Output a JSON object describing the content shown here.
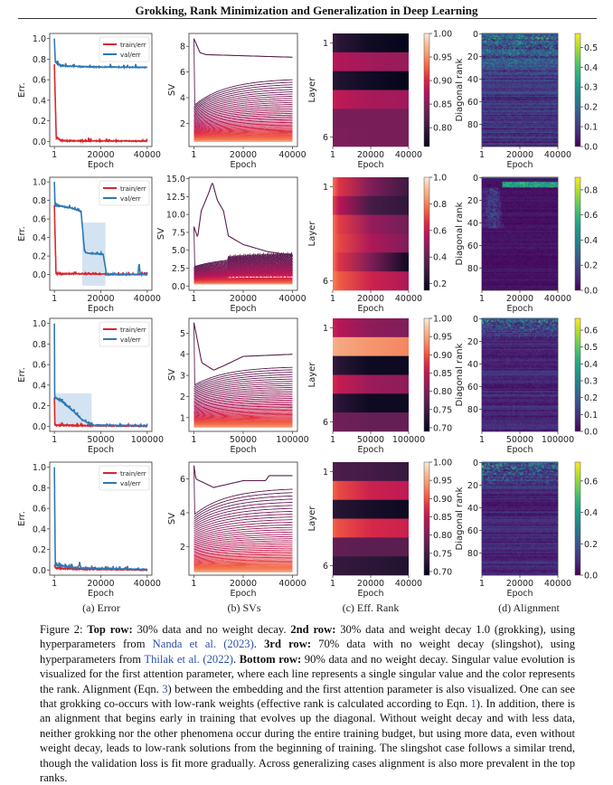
{
  "header": {
    "title": "Grokking, Rank Minimization and Generalization in Deep Learning"
  },
  "subcaptions": [
    "(a) Error",
    "(b) SVs",
    "(c) Eff. Rank",
    "(d) Alignment"
  ],
  "caption": {
    "segments": [
      {
        "text": "Figure 2: ",
        "style": "normal"
      },
      {
        "text": "Top row:",
        "style": "bold"
      },
      {
        "text": " 30% data and no weight decay.  ",
        "style": "normal"
      },
      {
        "text": "2nd row:",
        "style": "bold"
      },
      {
        "text": " 30% data and weight decay 1.0 (grokking), using hyperparameters from ",
        "style": "normal"
      },
      {
        "text": "Nanda et al. (2023)",
        "style": "link"
      },
      {
        "text": ". ",
        "style": "normal"
      },
      {
        "text": "3rd row:",
        "style": "bold"
      },
      {
        "text": " 70% data with no weight decay (slingshot), using hyperparameters from ",
        "style": "normal"
      },
      {
        "text": "Thilak et al. (2022)",
        "style": "link"
      },
      {
        "text": ".  ",
        "style": "normal"
      },
      {
        "text": "Bottom row:",
        "style": "bold"
      },
      {
        "text": " 90% data and no weight decay. Singular value evolution is visualized for the first attention parameter, where each line represents a single singular value and the color represents the rank. Alignment (Eqn. ",
        "style": "normal"
      },
      {
        "text": "3",
        "style": "link"
      },
      {
        "text": ") between the embedding and the first attention parameter is also visualized. One can see that grokking co-occurs with low-rank weights (effective rank is calculated according to Eqn. ",
        "style": "normal"
      },
      {
        "text": "1",
        "style": "link"
      },
      {
        "text": "). In addition, there is an alignment that begins early in training that evolves up the diagonal. Without weight decay and with less data, neither grokking nor the other phenomena occur during the entire training budget, but using more data, even without weight decay, leads to low-rank solutions from the beginning of training. The slingshot case follows a similar trend, though the validation loss is fit more gradually. Across generalizing cases alignment is also more prevalent in the top ranks.",
        "style": "normal"
      }
    ]
  },
  "colors": {
    "train": "#d9262b",
    "val": "#2f78b5",
    "val_band": "#c9dcee",
    "link": "#2b50a8"
  },
  "chart_data": [
    {
      "row": "Top row",
      "xlabel": "Epoch",
      "xlim": [
        1,
        40000
      ],
      "xtick_labels": [
        "1",
        "20000",
        "40000"
      ],
      "error": {
        "type": "line",
        "ylabel": "Err.",
        "ylim": [
          -0.05,
          1.05
        ],
        "ytick_labels": [
          "0.0",
          "0.2",
          "0.4",
          "0.6",
          "0.8",
          "1.0"
        ],
        "legend": [
          "train/err",
          "val/err"
        ],
        "legend_position": "top-right",
        "train": [
          [
            1,
            0.75
          ],
          [
            800,
            0.04
          ],
          [
            3000,
            0.005
          ],
          [
            40000,
            0.003
          ]
        ],
        "val": [
          [
            1,
            1.0
          ],
          [
            400,
            0.77
          ],
          [
            3000,
            0.735
          ],
          [
            15000,
            0.725
          ],
          [
            40000,
            0.72
          ]
        ],
        "val_band": null
      },
      "svs": {
        "type": "line",
        "ylabel": "SV",
        "ylim": [
          0.2,
          9.0
        ],
        "ytick_labels": [
          "2",
          "4",
          "6",
          "8"
        ],
        "top_sv": [
          [
            1,
            8.6
          ],
          [
            2500,
            7.5
          ],
          [
            5000,
            7.35
          ],
          [
            40000,
            7.15
          ]
        ],
        "bulk_start": [
          3.5,
          0.6
        ],
        "bulk_end": [
          5.6,
          0.6
        ],
        "oscillation": 0
      },
      "eff_rank": {
        "type": "heatmap",
        "ylabel": "Layer",
        "ytick_labels": [
          "1",
          "6"
        ],
        "colorbar_range": [
          0.76,
          1.0
        ],
        "colorbar_tick_labels": [
          "0.80",
          "0.85",
          "0.90",
          "0.95",
          "1.00"
        ],
        "layers_start_mid_end": [
          [
            0.8,
            0.77,
            0.76
          ],
          [
            0.88,
            0.865,
            0.86
          ],
          [
            0.79,
            0.77,
            0.76
          ],
          [
            0.89,
            0.87,
            0.865
          ],
          [
            0.84,
            0.84,
            0.84
          ],
          [
            0.845,
            0.84,
            0.84
          ]
        ]
      },
      "alignment": {
        "type": "heatmap",
        "ylabel": "Diagonal rank",
        "ytick_labels": [
          "0",
          "20",
          "40",
          "60",
          "80"
        ],
        "ranks": 100,
        "colorbar_range": [
          0,
          0.57
        ],
        "colorbar_tick_labels": [
          "0.0",
          "0.1",
          "0.2",
          "0.3",
          "0.4",
          "0.5"
        ],
        "background_level": 0.12,
        "top_band_level": 0.3,
        "top_band_ranks": 45,
        "early_band": false
      }
    },
    {
      "row": "2nd row",
      "xlabel": "Epoch",
      "xlim": [
        1,
        40000
      ],
      "xtick_labels": [
        "1",
        "20000",
        "40000"
      ],
      "error": {
        "type": "line",
        "ylabel": "Err.",
        "ylim": [
          -0.17,
          1.05
        ],
        "ytick_labels": [
          "0.0",
          "0.2",
          "0.4",
          "0.6",
          "0.8",
          "1.0"
        ],
        "legend": [
          "train/err",
          "val/err"
        ],
        "legend_position": "top-right",
        "train": [
          [
            1,
            0.75
          ],
          [
            700,
            0.01
          ],
          [
            40000,
            0.0
          ]
        ],
        "val": [
          [
            1,
            1.0
          ],
          [
            300,
            0.75
          ],
          [
            7000,
            0.72
          ],
          [
            11500,
            0.68
          ],
          [
            13000,
            0.25
          ],
          [
            14000,
            0.23
          ],
          [
            21000,
            0.22
          ],
          [
            22500,
            0.0
          ],
          [
            36000,
            0.0
          ],
          [
            36500,
            0.12
          ],
          [
            37000,
            0.0
          ],
          [
            40000,
            0.0
          ]
        ],
        "val_band": {
          "epochs": [
            12000,
            22000
          ],
          "range": [
            -0.12,
            0.56
          ]
        }
      },
      "svs": {
        "type": "line",
        "ylabel": "SV",
        "ylim": [
          -0.6,
          15.2
        ],
        "ytick_labels": [
          "0.0",
          "2.5",
          "5.0",
          "7.5",
          "10.0",
          "12.5",
          "15.0"
        ],
        "top_sv": [
          [
            1,
            8.3
          ],
          [
            1500,
            6.8
          ],
          [
            3000,
            10.5
          ],
          [
            6000,
            13.0
          ],
          [
            7500,
            14.5
          ],
          [
            9500,
            12.0
          ],
          [
            12000,
            10.5
          ],
          [
            14000,
            7.0
          ],
          [
            20000,
            5.8
          ],
          [
            30000,
            4.8
          ],
          [
            40000,
            4.3
          ]
        ],
        "bulk_start": [
          2.8,
          0.3
        ],
        "bulk_end": [
          4.2,
          0.3
        ],
        "oscillation": 0.6
      },
      "eff_rank": {
        "type": "heatmap",
        "ylabel": "Layer",
        "ytick_labels": [
          "1",
          "6"
        ],
        "colorbar_range": [
          0.15,
          1.0
        ],
        "colorbar_tick_labels": [
          "0.2",
          "0.4",
          "0.6",
          "0.8",
          "1.0"
        ],
        "layers_start_mid_end": [
          [
            0.78,
            0.45,
            0.3
          ],
          [
            0.7,
            0.32,
            0.27
          ],
          [
            0.78,
            0.5,
            0.42
          ],
          [
            0.78,
            0.55,
            0.45
          ],
          [
            0.78,
            0.45,
            0.18
          ],
          [
            0.8,
            0.62,
            0.55
          ]
        ]
      },
      "alignment": {
        "type": "heatmap",
        "ylabel": "Diagonal rank",
        "ytick_labels": [
          "0",
          "20",
          "40",
          "60",
          "80"
        ],
        "ranks": 100,
        "colorbar_range": [
          0,
          0.9
        ],
        "colorbar_tick_labels": [
          "0.0",
          "0.2",
          "0.4",
          "0.6",
          "0.8"
        ],
        "background_level": 0.08,
        "top_band_level": 0.6,
        "top_band_ranks": 8,
        "early_band": true
      }
    },
    {
      "row": "3rd row",
      "xlabel": "Epoch",
      "xlim": [
        1,
        100000
      ],
      "xtick_labels": [
        "1",
        "50000",
        "100000"
      ],
      "error": {
        "type": "line",
        "ylabel": "Err.",
        "ylim": [
          -0.05,
          1.05
        ],
        "ytick_labels": [
          "0.0",
          "0.2",
          "0.4",
          "0.6",
          "0.8",
          "1.0"
        ],
        "legend": [
          "train/err",
          "val/err"
        ],
        "legend_position": "top-right",
        "train": [
          [
            1,
            0.28
          ],
          [
            600,
            0.01
          ],
          [
            100000,
            0.0
          ]
        ],
        "val": [
          [
            1,
            1.0
          ],
          [
            400,
            0.28
          ],
          [
            10000,
            0.23
          ],
          [
            20000,
            0.15
          ],
          [
            30000,
            0.06
          ],
          [
            42000,
            0.01
          ],
          [
            100000,
            0.005
          ]
        ],
        "val_band": {
          "epochs": [
            1,
            40000
          ],
          "range": [
            0.0,
            0.32
          ]
        }
      },
      "svs": {
        "type": "line",
        "ylabel": "SV",
        "ylim": [
          0.35,
          5.7
        ],
        "ytick_labels": [
          "1",
          "2",
          "3",
          "4",
          "5"
        ],
        "top_sv": [
          [
            1,
            5.5
          ],
          [
            8000,
            3.6
          ],
          [
            20000,
            3.25
          ],
          [
            30000,
            3.45
          ],
          [
            50000,
            3.9
          ],
          [
            100000,
            4.0
          ]
        ],
        "bulk_start": [
          2.6,
          0.55
        ],
        "bulk_end": [
          3.5,
          0.55
        ],
        "oscillation": 0
      },
      "eff_rank": {
        "type": "heatmap",
        "ylabel": "Layer",
        "ytick_labels": [
          "1",
          "6"
        ],
        "colorbar_range": [
          0.69,
          1.0
        ],
        "colorbar_tick_labels": [
          "0.70",
          "0.75",
          "0.80",
          "0.85",
          "0.90",
          "0.95",
          "1.00"
        ],
        "layers_start_mid_end": [
          [
            0.86,
            0.81,
            0.8
          ],
          [
            0.96,
            0.94,
            0.93
          ],
          [
            0.74,
            0.7,
            0.7
          ],
          [
            0.87,
            0.82,
            0.81
          ],
          [
            0.74,
            0.7,
            0.7
          ],
          [
            0.79,
            0.78,
            0.78
          ]
        ]
      },
      "alignment": {
        "type": "heatmap",
        "ylabel": "Diagonal rank",
        "ytick_labels": [
          "0",
          "20",
          "40",
          "60",
          "80"
        ],
        "ranks": 100,
        "colorbar_range": [
          0,
          0.67
        ],
        "colorbar_tick_labels": [
          "0.0",
          "0.1",
          "0.2",
          "0.3",
          "0.4",
          "0.5",
          "0.6"
        ],
        "background_level": 0.1,
        "top_band_level": 0.4,
        "top_band_ranks": 20,
        "early_band": false
      }
    },
    {
      "row": "Bottom row",
      "xlabel": "Epoch",
      "xlim": [
        1,
        40000
      ],
      "xtick_labels": [
        "1",
        "20000",
        "40000"
      ],
      "error": {
        "type": "line",
        "ylabel": "Err.",
        "ylim": [
          -0.05,
          1.05
        ],
        "ytick_labels": [
          "0.0",
          "0.2",
          "0.4",
          "0.6",
          "0.8",
          "1.0"
        ],
        "legend": [
          "train/err",
          "val/err"
        ],
        "legend_position": "top-right",
        "train": [
          [
            1,
            0.05
          ],
          [
            500,
            0.02
          ],
          [
            8000,
            0.01
          ],
          [
            40000,
            0.0
          ]
        ],
        "val": [
          [
            1,
            1.0
          ],
          [
            400,
            0.05
          ],
          [
            10000,
            0.02
          ],
          [
            11000,
            0.06
          ],
          [
            11500,
            0.02
          ],
          [
            40000,
            0.005
          ]
        ],
        "val_band": null
      },
      "svs": {
        "type": "line",
        "ylabel": "SV",
        "ylim": [
          0.3,
          7.0
        ],
        "ytick_labels": [
          "2",
          "4",
          "6"
        ],
        "top_sv": [
          [
            1,
            6.8
          ],
          [
            800,
            6.0
          ],
          [
            8000,
            5.5
          ],
          [
            20000,
            5.9
          ],
          [
            29000,
            5.9
          ],
          [
            30500,
            6.2
          ],
          [
            40000,
            6.2
          ]
        ],
        "bulk_start": [
          4.0,
          0.5
        ],
        "bulk_end": [
          5.6,
          0.5
        ],
        "oscillation": 0
      },
      "eff_rank": {
        "type": "heatmap",
        "ylabel": "Layer",
        "ytick_labels": [
          "1",
          "6"
        ],
        "colorbar_range": [
          0.69,
          1.0
        ],
        "colorbar_tick_labels": [
          "0.70",
          "0.75",
          "0.80",
          "0.85",
          "0.90",
          "0.95",
          "1.00"
        ],
        "layers_start_mid_end": [
          [
            0.76,
            0.75,
            0.74
          ],
          [
            0.91,
            0.86,
            0.85
          ],
          [
            0.73,
            0.71,
            0.7
          ],
          [
            0.91,
            0.87,
            0.86
          ],
          [
            0.78,
            0.77,
            0.77
          ],
          [
            0.74,
            0.73,
            0.72
          ]
        ]
      },
      "alignment": {
        "type": "heatmap",
        "ylabel": "Diagonal rank",
        "ytick_labels": [
          "0",
          "20",
          "40",
          "60",
          "80"
        ],
        "ranks": 100,
        "colorbar_range": [
          0,
          0.72
        ],
        "colorbar_tick_labels": [
          "0.0",
          "0.2",
          "0.4",
          "0.6"
        ],
        "background_level": 0.1,
        "top_band_level": 0.45,
        "top_band_ranks": 25,
        "early_band": false
      }
    }
  ]
}
